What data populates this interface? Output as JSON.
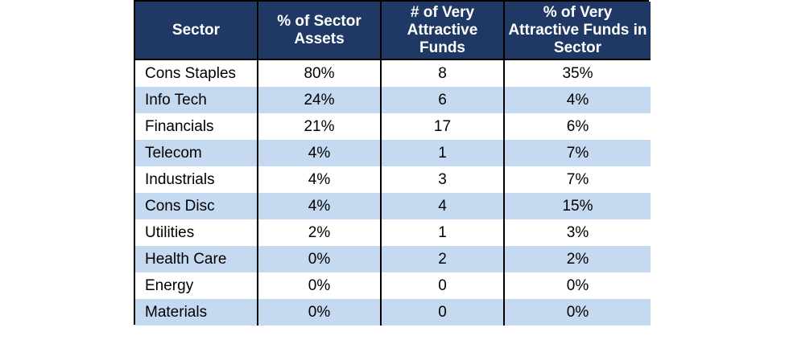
{
  "chart_data": {
    "type": "table",
    "columns": [
      "Sector",
      "% of Sector Assets",
      "# of Very Attractive Funds",
      "% of Very Attractive Funds in Sector"
    ],
    "rows": [
      [
        "Cons Staples",
        "80%",
        "8",
        "35%"
      ],
      [
        "Info Tech",
        "24%",
        "6",
        "4%"
      ],
      [
        "Financials",
        "21%",
        "17",
        "6%"
      ],
      [
        "Telecom",
        "4%",
        "1",
        "7%"
      ],
      [
        "Industrials",
        "4%",
        "3",
        "7%"
      ],
      [
        "Cons Disc",
        "4%",
        "4",
        "15%"
      ],
      [
        "Utilities",
        "2%",
        "1",
        "3%"
      ],
      [
        "Health Care",
        "0%",
        "2",
        "2%"
      ],
      [
        "Energy",
        "0%",
        "0",
        "0%"
      ],
      [
        "Materials",
        "0%",
        "0",
        "0%"
      ]
    ],
    "colors": {
      "header_bg": "#1f3864",
      "header_text": "#ffffff",
      "band_row": "#c5d9f1",
      "plain_row": "#ffffff"
    }
  }
}
